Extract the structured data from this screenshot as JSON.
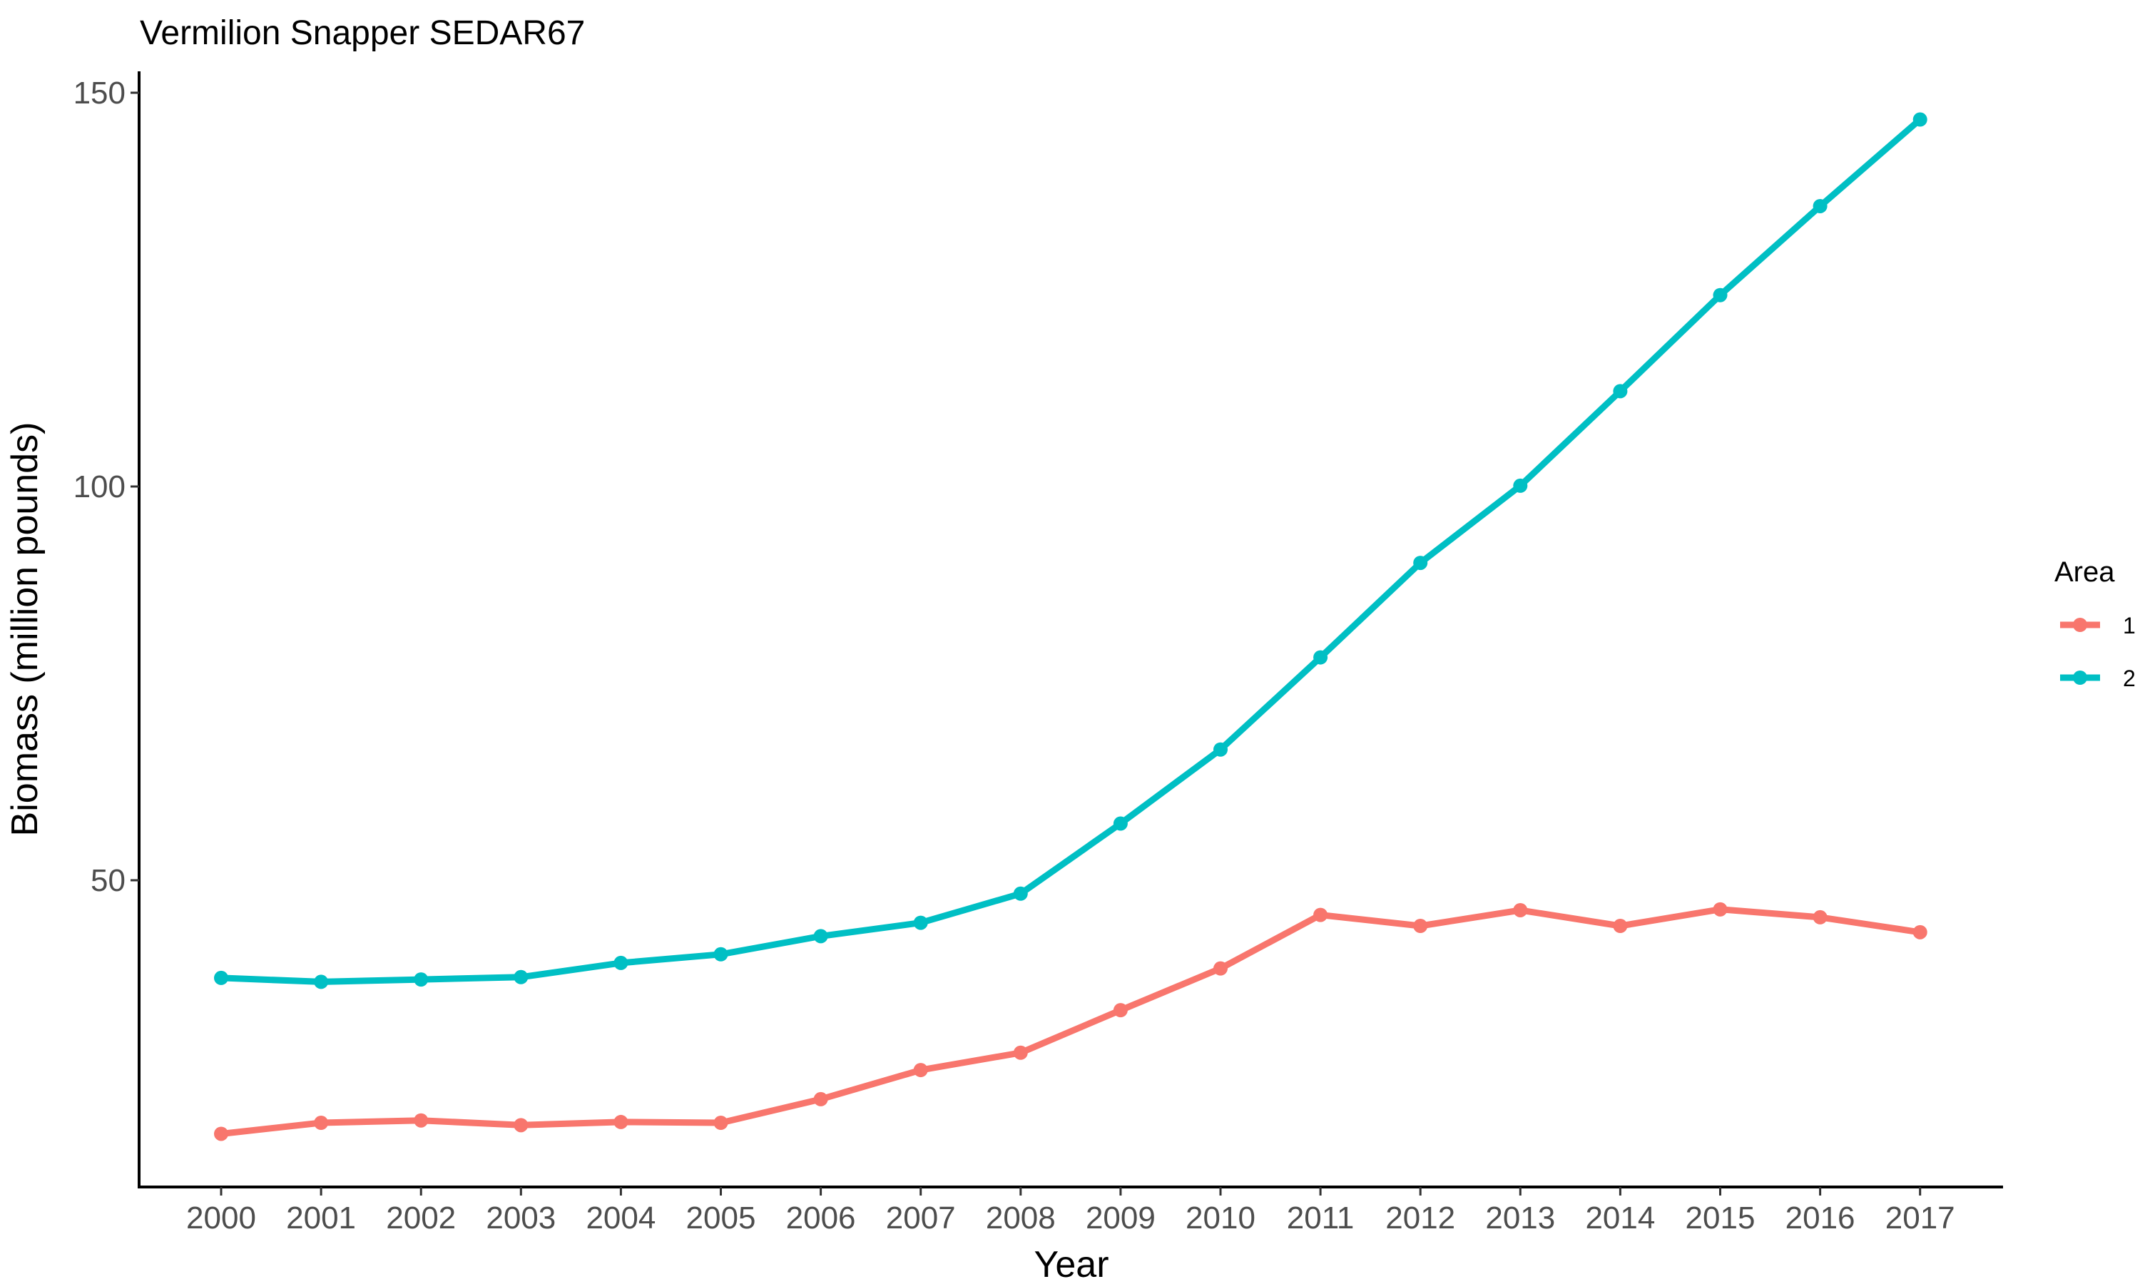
{
  "chart_data": {
    "type": "line",
    "title": "Vermilion Snapper SEDAR67",
    "xlabel": "Year",
    "ylabel": "Biomass (million pounds)",
    "x": [
      "2000",
      "2001",
      "2002",
      "2003",
      "2004",
      "2005",
      "2006",
      "2007",
      "2008",
      "2009",
      "2010",
      "2011",
      "2012",
      "2013",
      "2014",
      "2015",
      "2016",
      "2017"
    ],
    "yticks": [
      "50",
      "100",
      "150"
    ],
    "ylim": [
      11,
      153
    ],
    "grid": false,
    "legend": {
      "title": "Area",
      "position": "right"
    },
    "series": [
      {
        "name": "1",
        "color": "#F8766D",
        "values": [
          17.8,
          19.2,
          19.5,
          18.9,
          19.3,
          19.2,
          22.2,
          25.9,
          28.1,
          33.5,
          38.8,
          45.6,
          44.2,
          46.2,
          44.2,
          46.3,
          45.3,
          43.4
        ]
      },
      {
        "name": "2",
        "color": "#00BFC4",
        "values": [
          37.6,
          37.1,
          37.4,
          37.7,
          39.5,
          40.6,
          42.9,
          44.6,
          48.3,
          57.2,
          66.6,
          78.3,
          90.3,
          100.1,
          112.1,
          124.3,
          135.6,
          146.6
        ]
      }
    ]
  }
}
